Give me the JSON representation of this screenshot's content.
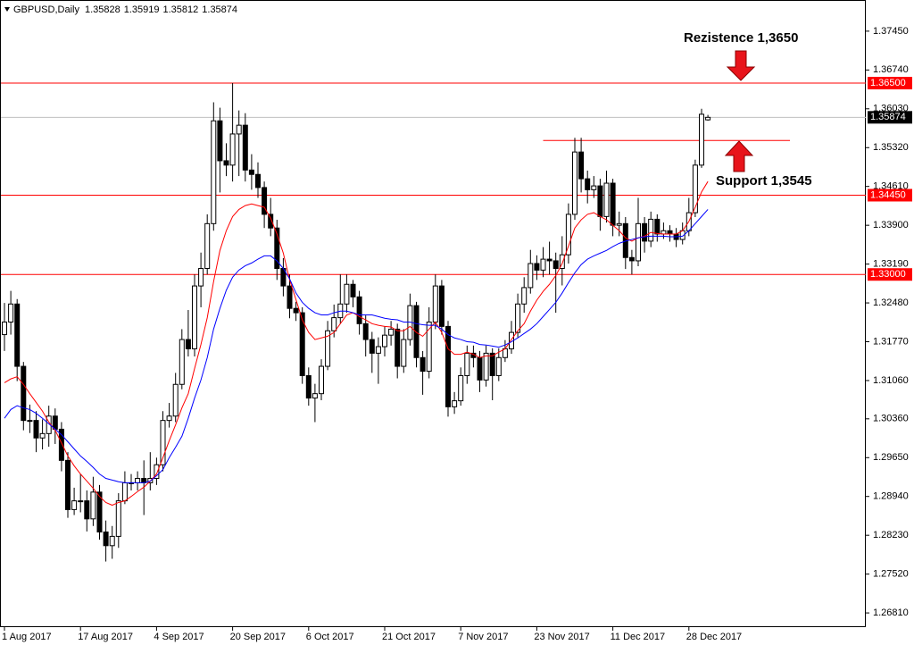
{
  "chart_data": {
    "type": "candlestick",
    "title": "GBPUSD,Daily",
    "categories": [
      "1 Aug 2017",
      null,
      null,
      null,
      null,
      null,
      null,
      null,
      null,
      null,
      null,
      null,
      "17 Aug 2017",
      null,
      null,
      null,
      null,
      null,
      null,
      null,
      null,
      null,
      null,
      null,
      "4 Sep 2017",
      null,
      null,
      null,
      null,
      null,
      null,
      null,
      null,
      null,
      null,
      null,
      "20 Sep 2017",
      null,
      null,
      null,
      null,
      null,
      null,
      null,
      null,
      null,
      null,
      null,
      "6 Oct 2017",
      null,
      null,
      null,
      null,
      null,
      null,
      null,
      null,
      null,
      null,
      null,
      "21 Oct 2017",
      null,
      null,
      null,
      null,
      null,
      null,
      null,
      null,
      null,
      null,
      null,
      "7 Nov 2017",
      null,
      null,
      null,
      null,
      null,
      null,
      null,
      null,
      null,
      null,
      null,
      "23 Nov 2017",
      null,
      null,
      null,
      null,
      null,
      null,
      null,
      null,
      null,
      null,
      null,
      "11 Dec 2017",
      null,
      null,
      null,
      null,
      null,
      null,
      null,
      null,
      null,
      null,
      null,
      "28 Dec 2017",
      null,
      null,
      null
    ],
    "open": [
      1.319,
      1.3213,
      1.3246,
      1.3132,
      1.3033,
      1.3033,
      1.3001,
      1.3009,
      1.3041,
      1.3017,
      1.296,
      1.287,
      1.2886,
      1.2886,
      1.2853,
      1.2902,
      1.2829,
      1.2804,
      1.2821,
      1.2886,
      1.2919,
      1.2919,
      1.2927,
      1.2919,
      1.2927,
      1.2952,
      1.3033,
      1.3041,
      1.3099,
      1.3181,
      1.3164,
      1.3279,
      1.3311,
      1.3393,
      1.3581,
      1.3508,
      1.35,
      1.3557,
      1.3573,
      1.3491,
      1.3483,
      1.3459,
      1.341,
      1.3385,
      1.3311,
      1.3279,
      1.3238,
      1.323,
      1.3115,
      1.3074,
      1.3082,
      1.3132,
      1.3197,
      1.3221,
      1.3246,
      1.3282,
      1.3259,
      1.321,
      1.3181,
      1.3156,
      1.3168,
      1.3189,
      1.32,
      1.3132,
      1.3181,
      1.3243,
      1.3148,
      1.3123,
      1.3213,
      1.3279,
      1.3205,
      1.3058,
      1.3069,
      1.3115,
      1.3156,
      1.3148,
      1.3107,
      1.3156,
      1.3115,
      1.3148,
      1.3164,
      1.3194,
      1.3246,
      1.3276,
      1.332,
      1.3308,
      1.3328,
      1.3325,
      1.3311,
      1.3336,
      1.341,
      1.3524,
      1.3475,
      1.3455,
      1.3462,
      1.3406,
      1.3467,
      1.339,
      1.3393,
      1.3331,
      1.3325,
      1.3393,
      1.3361,
      1.3401,
      1.3374,
      1.338,
      1.3374,
      1.3364,
      1.338,
      1.3413,
      1.35,
      1.35828
    ],
    "high": [
      1.3248,
      1.327,
      1.3255,
      1.314,
      1.3062,
      1.305,
      1.3035,
      1.306,
      1.3055,
      1.303,
      1.2975,
      1.291,
      1.2935,
      1.2905,
      1.293,
      1.2915,
      1.285,
      1.284,
      1.29,
      1.294,
      1.2935,
      1.294,
      1.296,
      1.2975,
      1.2965,
      1.305,
      1.3065,
      1.312,
      1.32,
      1.3235,
      1.33,
      1.334,
      1.341,
      1.3615,
      1.3605,
      1.354,
      1.365,
      1.36,
      1.3595,
      1.352,
      1.3505,
      1.347,
      1.344,
      1.34,
      1.333,
      1.33,
      1.325,
      1.324,
      1.313,
      1.31,
      1.3145,
      1.3215,
      1.3245,
      1.33,
      1.33,
      1.329,
      1.327,
      1.3225,
      1.3195,
      1.3185,
      1.3205,
      1.3215,
      1.321,
      1.32,
      1.3265,
      1.325,
      1.316,
      1.324,
      1.33,
      1.329,
      1.3215,
      1.3085,
      1.313,
      1.317,
      1.317,
      1.316,
      1.317,
      1.3165,
      1.3165,
      1.318,
      1.3215,
      1.3265,
      1.3295,
      1.3345,
      1.3335,
      1.335,
      1.336,
      1.334,
      1.337,
      1.343,
      1.355,
      1.355,
      1.349,
      1.348,
      1.3475,
      1.349,
      1.3475,
      1.3415,
      1.3405,
      1.3345,
      1.344,
      1.3405,
      1.3415,
      1.341,
      1.3395,
      1.339,
      1.3385,
      1.3395,
      1.344,
      1.351,
      1.3603,
      1.35919
    ],
    "low": [
      1.316,
      1.319,
      1.3105,
      1.3015,
      1.301,
      1.2975,
      1.298,
      1.2985,
      1.299,
      1.294,
      1.2855,
      1.286,
      1.2865,
      1.283,
      1.284,
      1.2815,
      1.2775,
      1.278,
      1.28,
      1.288,
      1.2905,
      1.2905,
      1.286,
      1.2905,
      1.2915,
      1.294,
      1.302,
      1.303,
      1.309,
      1.315,
      1.315,
      1.324,
      1.33,
      1.338,
      1.345,
      1.348,
      1.347,
      1.348,
      1.347,
      1.3455,
      1.344,
      1.3385,
      1.337,
      1.329,
      1.326,
      1.322,
      1.3215,
      1.31,
      1.306,
      1.303,
      1.307,
      1.3125,
      1.3185,
      1.321,
      1.323,
      1.324,
      1.319,
      1.315,
      1.312,
      1.31,
      1.315,
      1.317,
      1.311,
      1.312,
      1.317,
      1.313,
      1.308,
      1.311,
      1.32,
      1.319,
      1.304,
      1.3045,
      1.306,
      1.31,
      1.313,
      1.3085,
      1.3095,
      1.307,
      1.3105,
      1.314,
      1.3155,
      1.3185,
      1.323,
      1.3265,
      1.329,
      1.3295,
      1.33,
      1.323,
      1.328,
      1.332,
      1.34,
      1.345,
      1.343,
      1.344,
      1.338,
      1.3395,
      1.337,
      1.337,
      1.331,
      1.33,
      1.3315,
      1.334,
      1.335,
      1.336,
      1.3365,
      1.336,
      1.335,
      1.3355,
      1.337,
      1.3405,
      1.3495,
      1.35812
    ],
    "close": [
      1.3213,
      1.3246,
      1.3132,
      1.3033,
      1.3033,
      1.3001,
      1.3009,
      1.3041,
      1.3017,
      1.296,
      1.287,
      1.2886,
      1.2886,
      1.2853,
      1.2902,
      1.2829,
      1.2804,
      1.2821,
      1.2886,
      1.2919,
      1.2919,
      1.2927,
      1.2919,
      1.2927,
      1.2952,
      1.3033,
      1.3041,
      1.3099,
      1.3181,
      1.3164,
      1.3279,
      1.3311,
      1.3393,
      1.3581,
      1.3508,
      1.35,
      1.3557,
      1.3573,
      1.3491,
      1.3483,
      1.3459,
      1.341,
      1.3385,
      1.3311,
      1.3279,
      1.3238,
      1.323,
      1.3115,
      1.3074,
      1.3082,
      1.3132,
      1.3197,
      1.3221,
      1.3246,
      1.3282,
      1.3259,
      1.321,
      1.3181,
      1.3156,
      1.3168,
      1.3189,
      1.32,
      1.3132,
      1.3181,
      1.3243,
      1.3148,
      1.3123,
      1.3213,
      1.3279,
      1.3205,
      1.3058,
      1.3069,
      1.3115,
      1.3156,
      1.3148,
      1.3107,
      1.3156,
      1.3115,
      1.3148,
      1.3164,
      1.3194,
      1.3246,
      1.3276,
      1.332,
      1.3308,
      1.3328,
      1.3325,
      1.3311,
      1.3336,
      1.341,
      1.3524,
      1.3475,
      1.3455,
      1.3462,
      1.3406,
      1.3467,
      1.339,
      1.3393,
      1.3331,
      1.3325,
      1.3393,
      1.3361,
      1.3401,
      1.3374,
      1.338,
      1.3374,
      1.3364,
      1.338,
      1.3413,
      1.35,
      1.3593,
      1.35874
    ],
    "series": [
      {
        "color": "#ff0000",
        "values": [
          1.3102,
          1.3109,
          1.3113,
          1.3099,
          1.3082,
          1.3066,
          1.305,
          1.303,
          1.3015,
          1.2992,
          1.2968,
          1.295,
          1.2935,
          1.2922,
          1.2909,
          1.2894,
          1.2883,
          1.2878,
          1.2883,
          1.2886,
          1.2894,
          1.2903,
          1.2911,
          1.2922,
          1.2935,
          1.2965,
          1.2996,
          1.3025,
          1.3056,
          1.3082,
          1.3128,
          1.3172,
          1.3221,
          1.3287,
          1.3344,
          1.338,
          1.3406,
          1.3419,
          1.3426,
          1.3429,
          1.3426,
          1.3423,
          1.3403,
          1.3374,
          1.3339,
          1.329,
          1.3254,
          1.3217,
          1.3194,
          1.3181,
          1.3184,
          1.3187,
          1.3194,
          1.321,
          1.3226,
          1.323,
          1.3223,
          1.3217,
          1.321,
          1.3207,
          1.3205,
          1.3204,
          1.3197,
          1.3197,
          1.3205,
          1.3194,
          1.3187,
          1.32,
          1.3213,
          1.3194,
          1.3164,
          1.3154,
          1.3154,
          1.3158,
          1.3154,
          1.3148,
          1.3151,
          1.3151,
          1.3158,
          1.3164,
          1.3181,
          1.3197,
          1.321,
          1.3233,
          1.3253,
          1.3269,
          1.3282,
          1.3298,
          1.332,
          1.3352,
          1.3385,
          1.34,
          1.341,
          1.3413,
          1.3406,
          1.34,
          1.339,
          1.338,
          1.3367,
          1.3361,
          1.3367,
          1.337,
          1.3377,
          1.3375,
          1.3374,
          1.3374,
          1.3374,
          1.338,
          1.3397,
          1.3423,
          1.3451,
          1.347
        ]
      },
      {
        "color": "#0000ff",
        "values": [
          1.3037,
          1.3053,
          1.306,
          1.3056,
          1.3053,
          1.3046,
          1.3037,
          1.3027,
          1.3017,
          1.3007,
          1.2994,
          1.2981,
          1.2968,
          1.2958,
          1.2947,
          1.2935,
          1.2927,
          1.2924,
          1.2921,
          1.2919,
          1.2919,
          1.2919,
          1.2919,
          1.2922,
          1.2932,
          1.2943,
          1.2965,
          1.2984,
          1.3004,
          1.3037,
          1.3074,
          1.3107,
          1.3148,
          1.32,
          1.3238,
          1.3271,
          1.3295,
          1.3308,
          1.3316,
          1.3321,
          1.3328,
          1.3334,
          1.3334,
          1.3325,
          1.3311,
          1.3292,
          1.3266,
          1.3249,
          1.3238,
          1.323,
          1.3226,
          1.3226,
          1.323,
          1.3233,
          1.3233,
          1.323,
          1.3226,
          1.3226,
          1.3226,
          1.3223,
          1.322,
          1.3218,
          1.3217,
          1.3213,
          1.3213,
          1.321,
          1.3208,
          1.3207,
          1.3207,
          1.32,
          1.319,
          1.3184,
          1.3181,
          1.3177,
          1.3176,
          1.3172,
          1.3171,
          1.3169,
          1.3167,
          1.3171,
          1.3177,
          1.3184,
          1.3192,
          1.32,
          1.321,
          1.3223,
          1.3236,
          1.3249,
          1.3266,
          1.3285,
          1.3303,
          1.3318,
          1.3328,
          1.3334,
          1.3339,
          1.3344,
          1.3351,
          1.3357,
          1.3361,
          1.3364,
          1.3367,
          1.3369,
          1.337,
          1.337,
          1.337,
          1.3369,
          1.3369,
          1.337,
          1.338,
          1.3393,
          1.3406,
          1.3419
        ]
      }
    ],
    "ylim": [
      1.2655,
      1.3802
    ],
    "yticks": [
      {
        "value": 1.3745,
        "label": "1.37450"
      },
      {
        "value": 1.3674,
        "label": "1.36740"
      },
      {
        "value": 1.3603,
        "label": "1.36030"
      },
      {
        "value": 1.3532,
        "label": "1.35320"
      },
      {
        "value": 1.3461,
        "label": "1.34610"
      },
      {
        "value": 1.339,
        "label": "1.33900"
      },
      {
        "value": 1.3319,
        "label": "1.33190"
      },
      {
        "value": 1.3248,
        "label": "1.32480"
      },
      {
        "value": 1.3177,
        "label": "1.31770"
      },
      {
        "value": 1.3106,
        "label": "1.31060"
      },
      {
        "value": 1.3036,
        "label": "1.30360"
      },
      {
        "value": 1.2965,
        "label": "1.29650"
      },
      {
        "value": 1.2894,
        "label": "1.28940"
      },
      {
        "value": 1.2823,
        "label": "1.28230"
      },
      {
        "value": 1.2752,
        "label": "1.27520"
      },
      {
        "value": 1.2681,
        "label": "1.26810"
      }
    ],
    "grid": false,
    "hlines": [
      {
        "value": 1.365,
        "label": "1.36500",
        "color": "#ff0000",
        "box_color": "#ff0000"
      },
      {
        "value": 1.35874,
        "label": "1.35874",
        "color": "#c0c0c0",
        "box_color": "#000000"
      },
      {
        "value": 1.3445,
        "label": "1.34450",
        "color": "#ff0000",
        "box_color": "#ff0000"
      },
      {
        "value": 1.33,
        "label": "1.33000",
        "color": "#ff0000",
        "box_color": "#ff0000"
      }
    ],
    "segments": [
      {
        "value": 1.3545,
        "color": "#ff0000"
      }
    ],
    "annotations": [
      "Rezistence 1,3650",
      "Support 1,3545"
    ]
  }
}
